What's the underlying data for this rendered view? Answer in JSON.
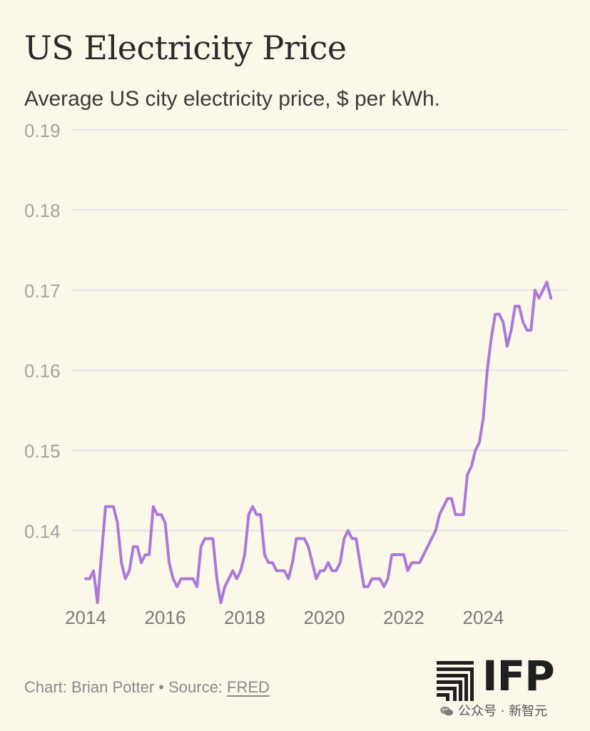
{
  "chart_data": {
    "type": "line",
    "title": "US Electricity Price",
    "subtitle": "Average US city electricity price, $ per kWh.",
    "xlabel": "",
    "ylabel": "$ per kWh",
    "xlim": [
      2014.0,
      2025.75
    ],
    "ylim": [
      0.1305,
      0.1915
    ],
    "x_ticks": [
      2014,
      2016,
      2018,
      2020,
      2022,
      2024
    ],
    "x_tick_labels": [
      "2014",
      "2016",
      "2018",
      "2020",
      "2022",
      "2024"
    ],
    "y_ticks": [
      0.14,
      0.15,
      0.16,
      0.17,
      0.18,
      0.19
    ],
    "y_tick_labels": [
      "0.14",
      "0.15",
      "0.16",
      "0.17",
      "0.18",
      "0.19"
    ],
    "grid": true,
    "line_color": "#a97ad8",
    "grid_color": "#e6e2e6",
    "series": [
      {
        "name": "Average US city electricity price",
        "x": [
          2014.0,
          2014.1,
          2014.2,
          2014.3,
          2014.4,
          2014.5,
          2014.6,
          2014.7,
          2014.8,
          2014.9,
          2015.0,
          2015.1,
          2015.2,
          2015.3,
          2015.4,
          2015.5,
          2015.6,
          2015.7,
          2015.8,
          2015.9,
          2016.0,
          2016.1,
          2016.2,
          2016.3,
          2016.4,
          2016.5,
          2016.6,
          2016.7,
          2016.8,
          2016.9,
          2017.0,
          2017.1,
          2017.2,
          2017.3,
          2017.4,
          2017.5,
          2017.6,
          2017.7,
          2017.8,
          2017.9,
          2018.0,
          2018.1,
          2018.2,
          2018.3,
          2018.4,
          2018.5,
          2018.6,
          2018.7,
          2018.8,
          2018.9,
          2019.0,
          2019.1,
          2019.2,
          2019.3,
          2019.4,
          2019.5,
          2019.6,
          2019.7,
          2019.8,
          2019.9,
          2020.0,
          2020.1,
          2020.2,
          2020.3,
          2020.4,
          2020.5,
          2020.6,
          2020.7,
          2020.8,
          2020.9,
          2021.0,
          2021.1,
          2021.2,
          2021.3,
          2021.4,
          2021.5,
          2021.6,
          2021.7,
          2021.8,
          2021.9,
          2022.0,
          2022.1,
          2022.2,
          2022.3,
          2022.4,
          2022.5,
          2022.6,
          2022.7,
          2022.8,
          2022.9,
          2023.0,
          2023.1,
          2023.2,
          2023.3,
          2023.4,
          2023.5,
          2023.6,
          2023.7,
          2023.8,
          2023.9,
          2024.0,
          2024.1,
          2024.2,
          2024.3,
          2024.4,
          2024.5,
          2024.6,
          2024.7,
          2024.8,
          2024.9,
          2025.0,
          2025.1,
          2025.2,
          2025.3,
          2025.4,
          2025.5,
          2025.6,
          2025.7
        ],
        "values": [
          0.134,
          0.134,
          0.135,
          0.131,
          0.137,
          0.143,
          0.143,
          0.143,
          0.141,
          0.136,
          0.134,
          0.135,
          0.138,
          0.138,
          0.136,
          0.137,
          0.137,
          0.143,
          0.142,
          0.142,
          0.141,
          0.136,
          0.134,
          0.133,
          0.134,
          0.134,
          0.134,
          0.134,
          0.133,
          0.138,
          0.139,
          0.139,
          0.139,
          0.134,
          0.131,
          0.133,
          0.134,
          0.135,
          0.134,
          0.135,
          0.137,
          0.142,
          0.143,
          0.142,
          0.142,
          0.137,
          0.136,
          0.136,
          0.135,
          0.135,
          0.135,
          0.134,
          0.136,
          0.139,
          0.139,
          0.139,
          0.138,
          0.136,
          0.134,
          0.135,
          0.135,
          0.136,
          0.135,
          0.135,
          0.136,
          0.139,
          0.14,
          0.139,
          0.139,
          0.136,
          0.133,
          0.133,
          0.134,
          0.134,
          0.134,
          0.133,
          0.134,
          0.137,
          0.137,
          0.137,
          0.137,
          0.135,
          0.136,
          0.136,
          0.136,
          0.137,
          0.138,
          0.139,
          0.14,
          0.142,
          0.143,
          0.144,
          0.144,
          0.142,
          0.142,
          0.142,
          0.147,
          0.148,
          0.15,
          0.151,
          0.154,
          0.16,
          0.164,
          0.167,
          0.167,
          0.166,
          0.163,
          0.165,
          0.168,
          0.168,
          0.166,
          0.165,
          0.165,
          0.17,
          0.169,
          0.17,
          0.171,
          0.169
        ]
      }
    ]
  },
  "footer": {
    "credit": "Chart: Brian Potter • Source: ",
    "source_link": "FRED"
  },
  "logo": {
    "text": "IFP"
  },
  "watermark": {
    "text": "公众号 · 新智元"
  }
}
